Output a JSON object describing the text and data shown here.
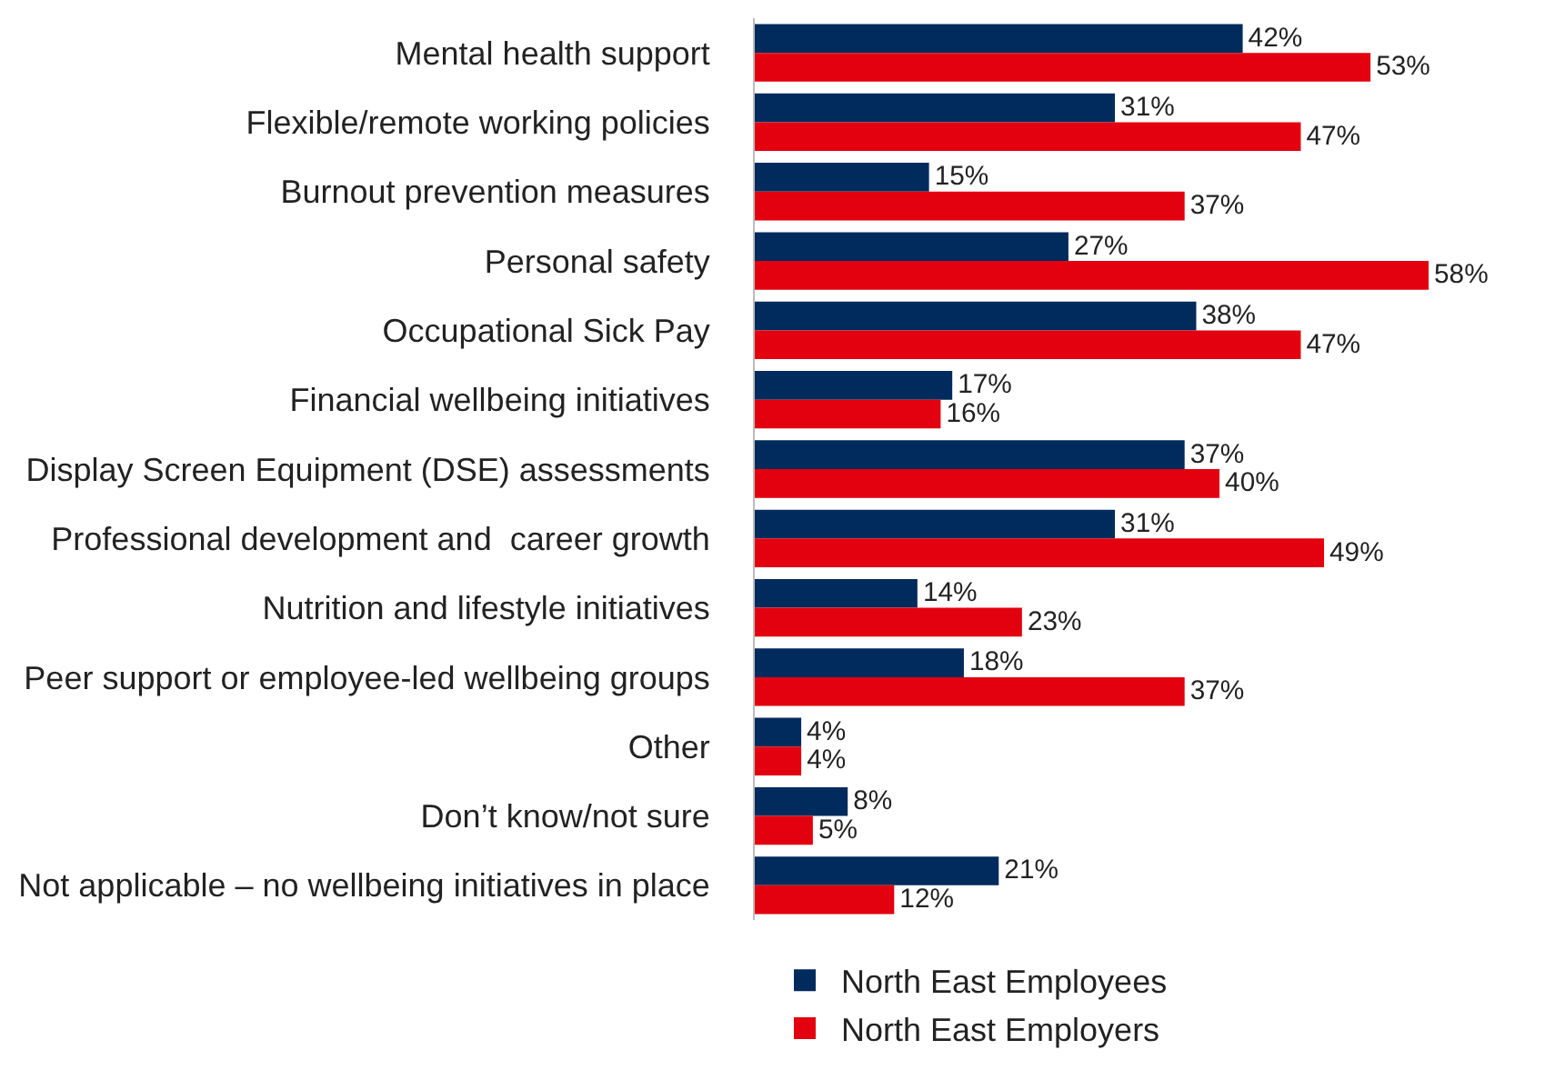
{
  "chart_data": {
    "type": "bar",
    "orientation": "horizontal",
    "categories": [
      "Mental health support",
      "Flexible/remote working policies",
      "Burnout prevention measures",
      "Personal safety",
      "Occupational Sick Pay",
      "Financial wellbeing initiatives",
      "Display Screen Equipment (DSE) assessments",
      "Professional development and  career growth",
      "Nutrition and lifestyle initiatives",
      "Peer support or employee-led wellbeing groups",
      "Other",
      "Don’t know/not sure",
      "Not applicable – no wellbeing initiatives in place"
    ],
    "series": [
      {
        "name": "North East Employees",
        "color": "#002b5c",
        "values": [
          42,
          31,
          15,
          27,
          38,
          17,
          37,
          31,
          14,
          18,
          4,
          8,
          21
        ],
        "value_labels": [
          "42%",
          "31%",
          "15%",
          "27%",
          "38%",
          "17%",
          "37%",
          "31%",
          "14%",
          "18%",
          "4%",
          "8%",
          "21%"
        ]
      },
      {
        "name": "North East Employers",
        "color": "#e3000f",
        "values": [
          53,
          47,
          37,
          58,
          47,
          16,
          40,
          49,
          23,
          37,
          4,
          5,
          12
        ],
        "value_labels": [
          "53%",
          "47%",
          "37%",
          "58%",
          "47%",
          "16%",
          "40%",
          "49%",
          "23%",
          "37%",
          "4%",
          "5%",
          "12%"
        ]
      }
    ],
    "legend": "bottom",
    "grid": false
  }
}
